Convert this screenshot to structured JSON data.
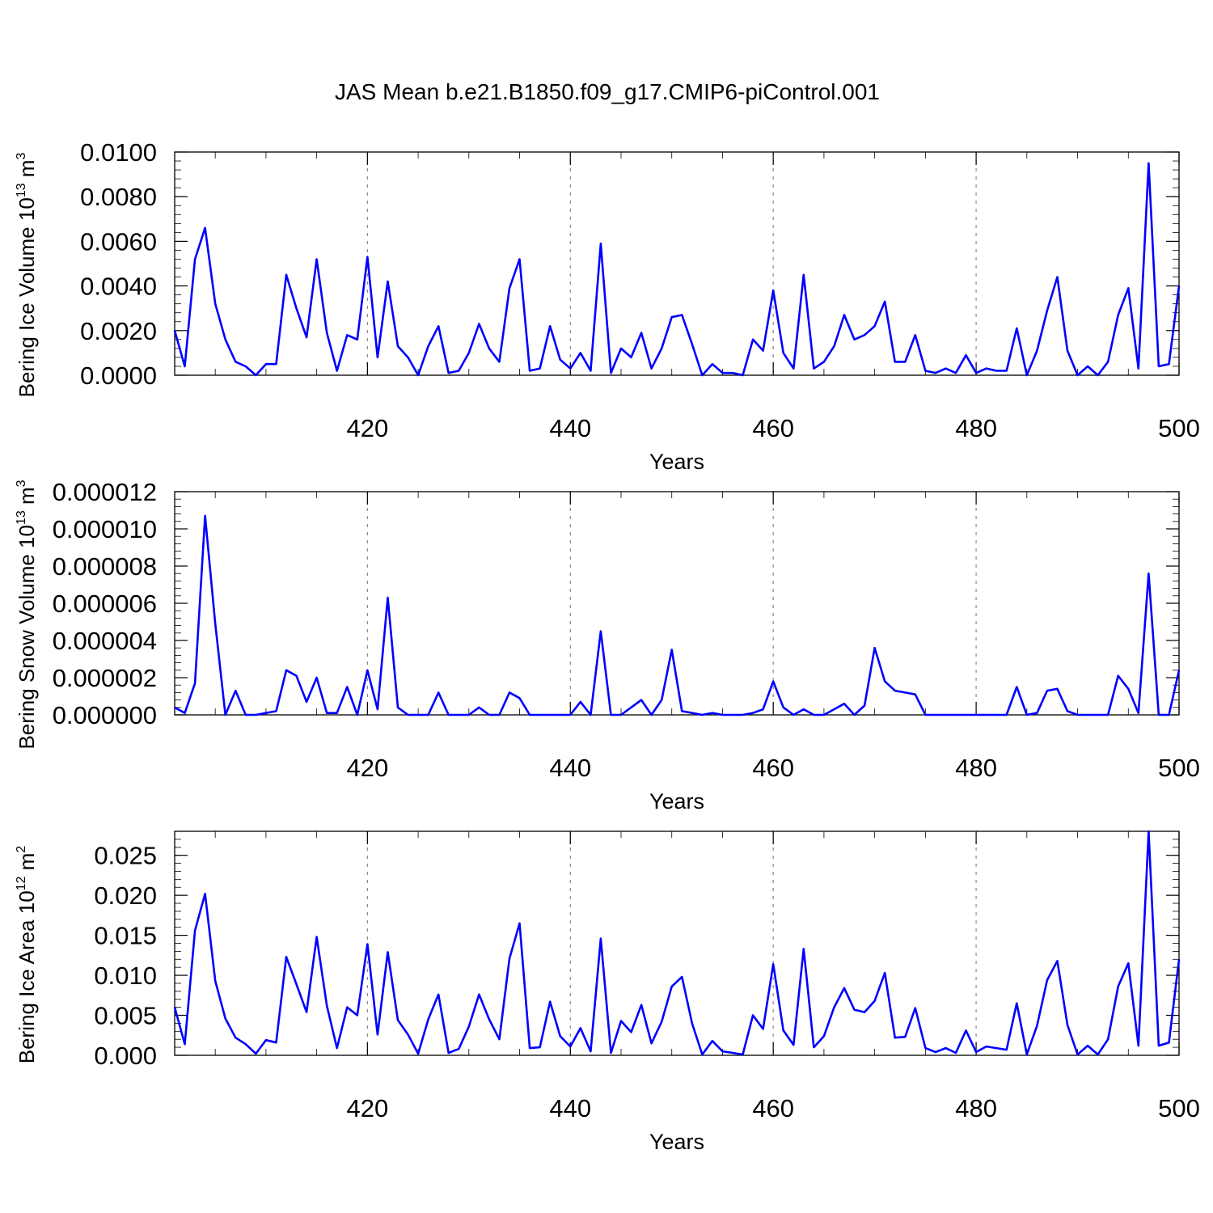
{
  "title": "JAS Mean b.e21.B1850.f09_g17.CMIP6-piControl.001",
  "chart_data": [
    {
      "type": "line",
      "title": "JAS Mean b.e21.B1850.f09_g17.CMIP6-piControl.001",
      "xlabel": "Years",
      "ylabel": "Bering Ice Volume 10",
      "ylabel_sup": "13",
      "ylabel_unit": " m",
      "ylabel_unit_sup": "3",
      "xlim": [
        401,
        500
      ],
      "ylim": [
        0,
        0.01
      ],
      "xticks": [
        420,
        440,
        460,
        480,
        500
      ],
      "yticks": [
        0,
        0.002,
        0.004,
        0.006,
        0.008,
        0.01
      ],
      "ytick_labels": [
        "0.0000",
        "0.0020",
        "0.0040",
        "0.0060",
        "0.0080",
        "0.0100"
      ],
      "grid": "vertical dashed",
      "color": "#0000ff",
      "series": [
        {
          "x": [
            401,
            402,
            403,
            404,
            405,
            406,
            407,
            408,
            409,
            410,
            411,
            412,
            413,
            414,
            415,
            416,
            417,
            418,
            419,
            420,
            421,
            422,
            423,
            424,
            425,
            426,
            427,
            428,
            429,
            430,
            431,
            432,
            433,
            434,
            435,
            436,
            437,
            438,
            439,
            440,
            441,
            442,
            443,
            444,
            445,
            446,
            447,
            448,
            449,
            450,
            451,
            452,
            453,
            454,
            455,
            456,
            457,
            458,
            459,
            460,
            461,
            462,
            463,
            464,
            465,
            466,
            467,
            468,
            469,
            470,
            471,
            472,
            473,
            474,
            475,
            476,
            477,
            478,
            479,
            480,
            481,
            482,
            483,
            484,
            485,
            486,
            487,
            488,
            489,
            490,
            491,
            492,
            493,
            494,
            495,
            496,
            497,
            498,
            499,
            500
          ],
          "values": [
            0.002,
            0.0004,
            0.0052,
            0.0066,
            0.0032,
            0.0016,
            0.0006,
            0.0004,
            0.0,
            0.0005,
            0.0005,
            0.0045,
            0.003,
            0.0017,
            0.0052,
            0.0019,
            0.0002,
            0.0018,
            0.0016,
            0.0053,
            0.0008,
            0.0042,
            0.0013,
            0.0008,
            0.0,
            0.0013,
            0.0022,
            0.0001,
            0.0002,
            0.001,
            0.0023,
            0.0012,
            0.0006,
            0.0039,
            0.0052,
            0.0002,
            0.0003,
            0.0022,
            0.0007,
            0.0003,
            0.001,
            0.0002,
            0.0059,
            0.0001,
            0.0012,
            0.0008,
            0.0019,
            0.0003,
            0.0012,
            0.0026,
            0.0027,
            0.0014,
            0.0,
            0.0005,
            0.0001,
            0.0001,
            0.0,
            0.0016,
            0.0011,
            0.0038,
            0.001,
            0.0003,
            0.0045,
            0.0003,
            0.0006,
            0.0013,
            0.0027,
            0.0016,
            0.0018,
            0.0022,
            0.0033,
            0.0006,
            0.0006,
            0.0018,
            0.0002,
            0.0001,
            0.0003,
            0.0001,
            0.0009,
            0.0001,
            0.0003,
            0.0002,
            0.0002,
            0.0021,
            0.0,
            0.0011,
            0.0029,
            0.0044,
            0.0011,
            0.0,
            0.0004,
            0.0,
            0.0006,
            0.0027,
            0.0039,
            0.0003,
            0.0095,
            0.0004,
            0.0005,
            0.004
          ]
        }
      ]
    },
    {
      "type": "line",
      "xlabel": "Years",
      "ylabel": "Bering Snow Volume 10",
      "ylabel_sup": "13",
      "ylabel_unit": " m",
      "ylabel_unit_sup": "3",
      "xlim": [
        401,
        500
      ],
      "ylim": [
        0,
        1.2e-05
      ],
      "xticks": [
        420,
        440,
        460,
        480,
        500
      ],
      "yticks": [
        0,
        2e-06,
        4e-06,
        6e-06,
        8e-06,
        1e-05,
        1.2e-05
      ],
      "ytick_labels": [
        "0.000000",
        "0.000002",
        "0.000004",
        "0.000006",
        "0.000008",
        "0.000010",
        "0.000012"
      ],
      "grid": "vertical dashed",
      "color": "#0000ff",
      "series": [
        {
          "x": [
            401,
            402,
            403,
            404,
            405,
            406,
            407,
            408,
            409,
            410,
            411,
            412,
            413,
            414,
            415,
            416,
            417,
            418,
            419,
            420,
            421,
            422,
            423,
            424,
            425,
            426,
            427,
            428,
            429,
            430,
            431,
            432,
            433,
            434,
            435,
            436,
            437,
            438,
            439,
            440,
            441,
            442,
            443,
            444,
            445,
            446,
            447,
            448,
            449,
            450,
            451,
            452,
            453,
            454,
            455,
            456,
            457,
            458,
            459,
            460,
            461,
            462,
            463,
            464,
            465,
            466,
            467,
            468,
            469,
            470,
            471,
            472,
            473,
            474,
            475,
            476,
            477,
            478,
            479,
            480,
            481,
            482,
            483,
            484,
            485,
            486,
            487,
            488,
            489,
            490,
            491,
            492,
            493,
            494,
            495,
            496,
            497,
            498,
            499,
            500
          ],
          "values": [
            4e-07,
            1e-07,
            1.7e-06,
            1.07e-05,
            4.9e-06,
            0.0,
            1.3e-06,
            0.0,
            0.0,
            1e-07,
            2e-07,
            2.4e-06,
            2.1e-06,
            7e-07,
            2e-06,
            1e-07,
            1e-07,
            1.5e-06,
            0.0,
            2.4e-06,
            3e-07,
            6.3e-06,
            4e-07,
            0.0,
            0.0,
            0.0,
            1.2e-06,
            0.0,
            0.0,
            0.0,
            4e-07,
            0.0,
            0.0,
            1.2e-06,
            9e-07,
            0.0,
            0.0,
            0.0,
            0.0,
            0.0,
            7e-07,
            0.0,
            4.5e-06,
            0.0,
            0.0,
            4e-07,
            8e-07,
            0.0,
            8e-07,
            3.5e-06,
            2e-07,
            1e-07,
            0.0,
            1e-07,
            0.0,
            0.0,
            0.0,
            1e-07,
            3e-07,
            1.8e-06,
            4e-07,
            0.0,
            3e-07,
            0.0,
            0.0,
            3e-07,
            6e-07,
            0.0,
            5e-07,
            3.6e-06,
            1.8e-06,
            1.3e-06,
            1.2e-06,
            1.1e-06,
            0.0,
            0.0,
            0.0,
            0.0,
            0.0,
            0.0,
            0.0,
            0.0,
            0.0,
            1.5e-06,
            0.0,
            1e-07,
            1.3e-06,
            1.4e-06,
            2e-07,
            0.0,
            0.0,
            0.0,
            0.0,
            2.1e-06,
            1.4e-06,
            1e-07,
            7.6e-06,
            0.0,
            0.0,
            2.4e-06
          ]
        }
      ]
    },
    {
      "type": "line",
      "xlabel": "Years",
      "ylabel": "Bering Ice Area 10",
      "ylabel_sup": "12",
      "ylabel_unit": " m",
      "ylabel_unit_sup": "2",
      "xlim": [
        401,
        500
      ],
      "ylim": [
        0,
        0.028
      ],
      "xticks": [
        420,
        440,
        460,
        480,
        500
      ],
      "yticks": [
        0,
        0.005,
        0.01,
        0.015,
        0.02,
        0.025
      ],
      "ytick_labels": [
        "0.000",
        "0.005",
        "0.010",
        "0.015",
        "0.020",
        "0.025"
      ],
      "grid": "vertical dashed",
      "color": "#0000ff",
      "series": [
        {
          "x": [
            401,
            402,
            403,
            404,
            405,
            406,
            407,
            408,
            409,
            410,
            411,
            412,
            413,
            414,
            415,
            416,
            417,
            418,
            419,
            420,
            421,
            422,
            423,
            424,
            425,
            426,
            427,
            428,
            429,
            430,
            431,
            432,
            433,
            434,
            435,
            436,
            437,
            438,
            439,
            440,
            441,
            442,
            443,
            444,
            445,
            446,
            447,
            448,
            449,
            450,
            451,
            452,
            453,
            454,
            455,
            456,
            457,
            458,
            459,
            460,
            461,
            462,
            463,
            464,
            465,
            466,
            467,
            468,
            469,
            470,
            471,
            472,
            473,
            474,
            475,
            476,
            477,
            478,
            479,
            480,
            481,
            482,
            483,
            484,
            485,
            486,
            487,
            488,
            489,
            490,
            491,
            492,
            493,
            494,
            495,
            496,
            497,
            498,
            499,
            500
          ],
          "values": [
            0.006,
            0.0014,
            0.0156,
            0.0202,
            0.0093,
            0.0046,
            0.0022,
            0.0014,
            0.0002,
            0.0019,
            0.0016,
            0.0123,
            0.0089,
            0.0054,
            0.0148,
            0.0062,
            0.0009,
            0.006,
            0.005,
            0.0139,
            0.0026,
            0.0129,
            0.0044,
            0.0026,
            0.0002,
            0.0045,
            0.0076,
            0.0003,
            0.0008,
            0.0036,
            0.0076,
            0.0045,
            0.002,
            0.0121,
            0.0165,
            0.0009,
            0.001,
            0.0067,
            0.0024,
            0.0011,
            0.0034,
            0.0005,
            0.0146,
            0.0003,
            0.0043,
            0.0029,
            0.0063,
            0.0015,
            0.0042,
            0.0086,
            0.0098,
            0.004,
            0.0001,
            0.0018,
            0.0005,
            0.0003,
            0.0001,
            0.005,
            0.0033,
            0.0114,
            0.0031,
            0.0013,
            0.0133,
            0.001,
            0.0024,
            0.006,
            0.0084,
            0.0057,
            0.0054,
            0.0068,
            0.0103,
            0.0022,
            0.0023,
            0.0059,
            0.0009,
            0.0004,
            0.0009,
            0.0003,
            0.0031,
            0.0004,
            0.0011,
            0.0009,
            0.0007,
            0.0065,
            0.0001,
            0.0037,
            0.0094,
            0.0118,
            0.0038,
            0.0001,
            0.0012,
            0.0001,
            0.002,
            0.0086,
            0.0115,
            0.0012,
            0.028,
            0.0012,
            0.0016,
            0.012
          ]
        }
      ]
    }
  ]
}
